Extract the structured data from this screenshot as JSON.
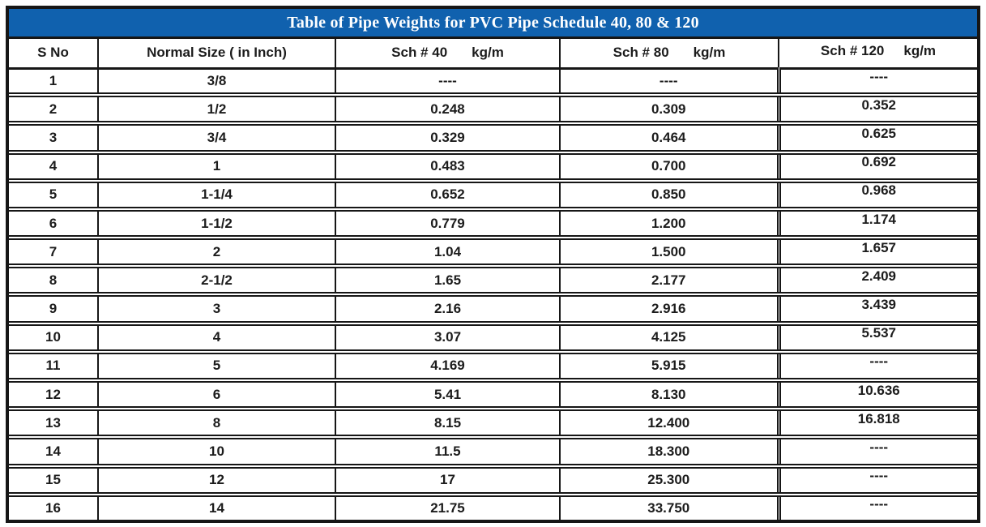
{
  "colors": {
    "title_bar_bg": "#1061AE",
    "title_text": "#FFFFFF",
    "grid_line": "#161616",
    "cell_text": "#1C1C1C"
  },
  "chart_data": {
    "type": "table",
    "title": "Table of Pipe Weights for PVC Pipe Schedule 40, 80 & 120",
    "columns": [
      {
        "label": "S No"
      },
      {
        "label": "Normal Size ( in Inch)"
      },
      {
        "label": "Sch # 40",
        "unit": "kg/m"
      },
      {
        "label": "Sch # 80",
        "unit": "kg/m"
      },
      {
        "label": "Sch # 120",
        "unit": "kg/m"
      }
    ],
    "rows": [
      [
        "1",
        "3/8",
        "----",
        "----",
        "----"
      ],
      [
        "2",
        "1/2",
        "0.248",
        "0.309",
        "0.352"
      ],
      [
        "3",
        "3/4",
        "0.329",
        "0.464",
        "0.625"
      ],
      [
        "4",
        "1",
        "0.483",
        "0.700",
        "0.692"
      ],
      [
        "5",
        "1-1/4",
        "0.652",
        "0.850",
        "0.968"
      ],
      [
        "6",
        "1-1/2",
        "0.779",
        "1.200",
        "1.174"
      ],
      [
        "7",
        "2",
        "1.04",
        "1.500",
        "1.657"
      ],
      [
        "8",
        "2-1/2",
        "1.65",
        "2.177",
        "2.409"
      ],
      [
        "9",
        "3",
        "2.16",
        "2.916",
        "3.439"
      ],
      [
        "10",
        "4",
        "3.07",
        "4.125",
        "5.537"
      ],
      [
        "11",
        "5",
        "4.169",
        "5.915",
        "----"
      ],
      [
        "12",
        "6",
        "5.41",
        "8.130",
        "10.636"
      ],
      [
        "13",
        "8",
        "8.15",
        "12.400",
        "16.818"
      ],
      [
        "14",
        "10",
        "11.5",
        "18.300",
        "----"
      ],
      [
        "15",
        "12",
        "17",
        "25.300",
        "----"
      ],
      [
        "16",
        "14",
        "21.75",
        "33.750",
        "----"
      ]
    ]
  }
}
